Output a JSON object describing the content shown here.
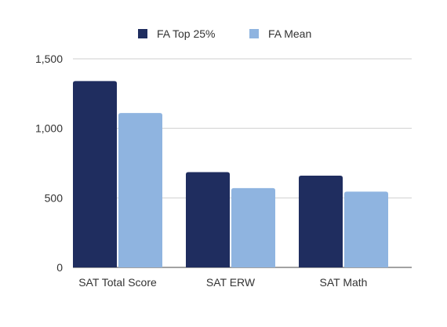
{
  "chart_data": {
    "type": "bar",
    "title": "",
    "xlabel": "",
    "ylabel": "",
    "categories": [
      "SAT Total Score",
      "SAT ERW",
      "SAT Math"
    ],
    "series": [
      {
        "name": "FA Top 25%",
        "color": "#1f2d5f",
        "values": [
          1340,
          685,
          660
        ]
      },
      {
        "name": "FA Mean",
        "color": "#8fb4e0",
        "values": [
          1110,
          570,
          545
        ]
      }
    ],
    "ylim": [
      0,
      1500
    ],
    "yticks": [
      0,
      500,
      1000,
      1500
    ],
    "ytick_labels": [
      "0",
      "500",
      "1,000",
      "1,500"
    ],
    "grid": true,
    "legend": "top-center"
  }
}
